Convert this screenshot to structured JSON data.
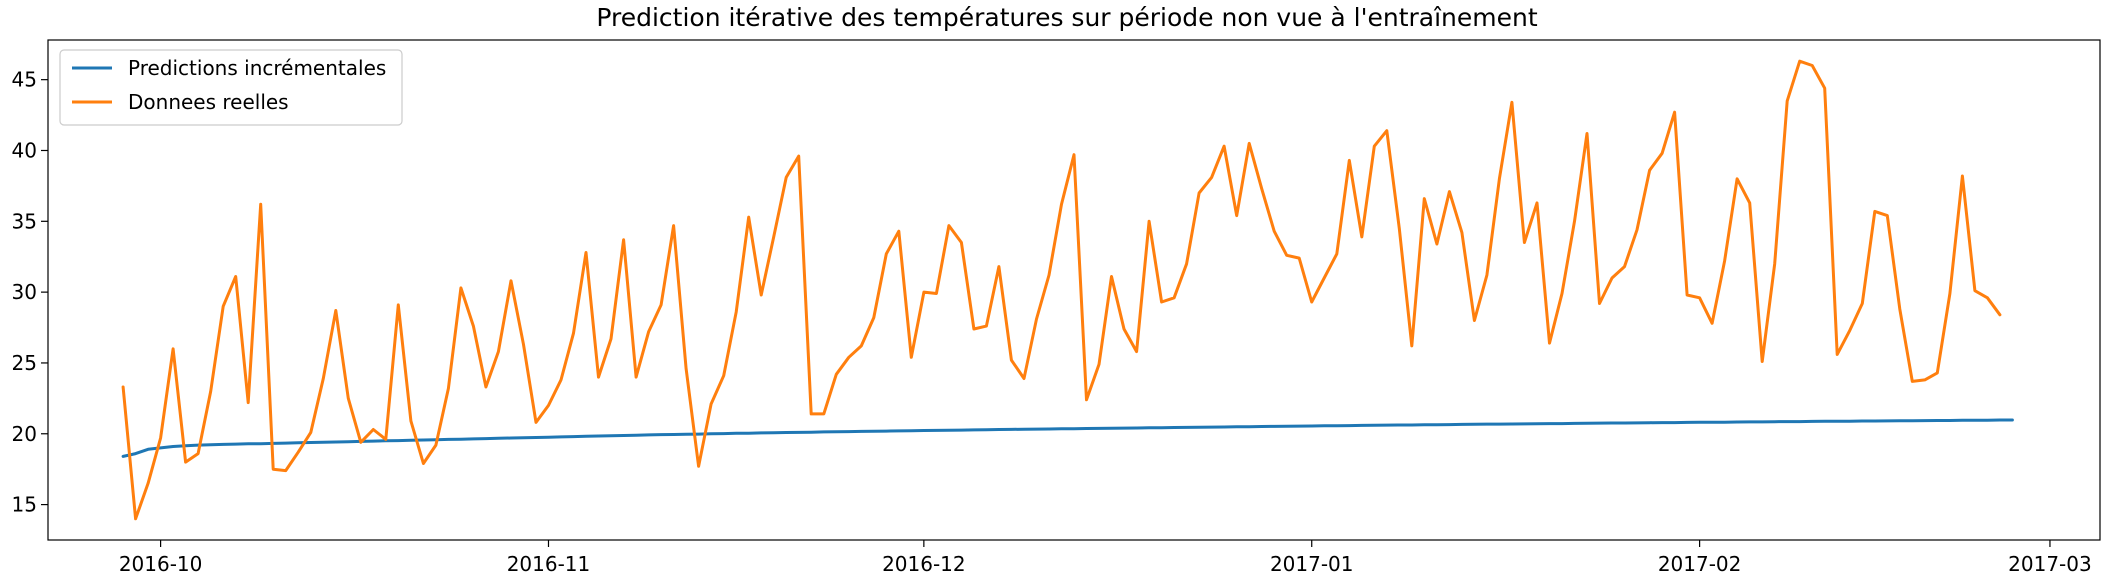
{
  "chart_data": {
    "type": "line",
    "title": "Prediction itérative des températures sur période non vue à l'entraînement",
    "xlabel": "",
    "ylabel": "",
    "x_start": "2016-09-28",
    "x_end": "2017-02-26",
    "xlim": [
      "2016-09-22",
      "2017-03-05"
    ],
    "ylim": [
      12.5,
      47.8
    ],
    "x_ticks": [
      "2016-10",
      "2016-11",
      "2016-12",
      "2017-01",
      "2017-02",
      "2017-03"
    ],
    "y_ticks": [
      15,
      20,
      25,
      30,
      35,
      40,
      45
    ],
    "grid": false,
    "legend_position": "upper-left",
    "series": [
      {
        "name": "Predictions incrémentales",
        "color": "#1f77b4",
        "values": [
          18.4,
          18.6,
          18.9,
          19.0,
          19.1,
          19.15,
          19.2,
          19.22,
          19.25,
          19.27,
          19.29,
          19.3,
          19.32,
          19.34,
          19.36,
          19.38,
          19.4,
          19.42,
          19.44,
          19.46,
          19.48,
          19.5,
          19.52,
          19.54,
          19.56,
          19.58,
          19.6,
          19.62,
          19.64,
          19.66,
          19.68,
          19.7,
          19.72,
          19.74,
          19.76,
          19.78,
          19.8,
          19.82,
          19.84,
          19.86,
          19.88,
          19.9,
          19.92,
          19.94,
          19.95,
          19.97,
          19.98,
          20.0,
          20.01,
          20.03,
          20.04,
          20.06,
          20.07,
          20.09,
          20.1,
          20.11,
          20.13,
          20.14,
          20.15,
          20.17,
          20.18,
          20.19,
          20.2,
          20.22,
          20.23,
          20.24,
          20.25,
          20.26,
          20.27,
          20.28,
          20.3,
          20.31,
          20.32,
          20.33,
          20.34,
          20.35,
          20.36,
          20.37,
          20.38,
          20.39,
          20.4,
          20.41,
          20.42,
          20.43,
          20.44,
          20.45,
          20.46,
          20.47,
          20.48,
          20.49,
          20.5,
          20.51,
          20.52,
          20.53,
          20.54,
          20.55,
          20.56,
          20.57,
          20.58,
          20.59,
          20.6,
          20.61,
          20.62,
          20.62,
          20.63,
          20.64,
          20.65,
          20.66,
          20.67,
          20.68,
          20.68,
          20.69,
          20.7,
          20.71,
          20.72,
          20.72,
          20.73,
          20.74,
          20.75,
          20.76,
          20.76,
          20.77,
          20.78,
          20.79,
          20.79,
          20.8,
          20.81,
          20.82,
          20.82,
          20.83,
          20.84,
          20.84,
          20.85,
          20.86,
          20.86,
          20.87,
          20.88,
          20.88,
          20.89,
          20.9,
          20.9,
          20.91,
          20.92,
          20.92,
          20.93,
          20.94,
          20.94,
          20.95,
          20.95,
          20.96,
          20.97,
          20.97
        ]
      },
      {
        "name": "Donnees reelles",
        "color": "#ff7f0e",
        "values": [
          23.3,
          14.0,
          16.5,
          19.7,
          26.0,
          18.0,
          18.6,
          23.0,
          29.0,
          31.1,
          22.2,
          36.2,
          17.5,
          17.4,
          18.7,
          20.1,
          23.9,
          28.7,
          22.5,
          19.4,
          20.3,
          19.6,
          29.1,
          20.9,
          17.9,
          19.2,
          23.2,
          30.3,
          27.6,
          23.3,
          25.8,
          30.8,
          26.3,
          20.8,
          22.0,
          23.8,
          27.1,
          32.8,
          24.0,
          26.7,
          33.7,
          24.0,
          27.2,
          29.1,
          34.7,
          24.6,
          17.7,
          22.1,
          24.1,
          28.6,
          35.3,
          29.8,
          33.9,
          38.1,
          39.6,
          21.4,
          21.4,
          24.2,
          25.4,
          26.2,
          28.2,
          32.7,
          34.3,
          25.4,
          30.0,
          29.9,
          34.7,
          33.5,
          27.4,
          27.6,
          31.8,
          25.2,
          23.9,
          28.1,
          31.2,
          36.2,
          39.7,
          22.4,
          24.9,
          31.1,
          27.4,
          25.8,
          35.0,
          29.3,
          29.6,
          32.0,
          37.0,
          38.1,
          40.3,
          35.4,
          40.5,
          37.3,
          34.3,
          32.6,
          32.4,
          29.3,
          31.0,
          32.7,
          39.3,
          33.9,
          40.3,
          41.4,
          34.5,
          26.2,
          36.6,
          33.4,
          37.1,
          34.2,
          28.0,
          31.2,
          38.0,
          43.4,
          33.5,
          36.3,
          26.4,
          29.9,
          35.0,
          41.2,
          29.2,
          31.0,
          31.8,
          34.4,
          38.6,
          39.8,
          42.7,
          29.8,
          29.6,
          27.8,
          32.2,
          38.0,
          36.3,
          25.1,
          32.0,
          43.5,
          46.3,
          46.0,
          44.4,
          25.6,
          27.3,
          29.2,
          35.7,
          35.4,
          28.8,
          23.7,
          23.8,
          24.3,
          29.9,
          38.2,
          30.1,
          29.6,
          28.4
        ]
      }
    ]
  }
}
